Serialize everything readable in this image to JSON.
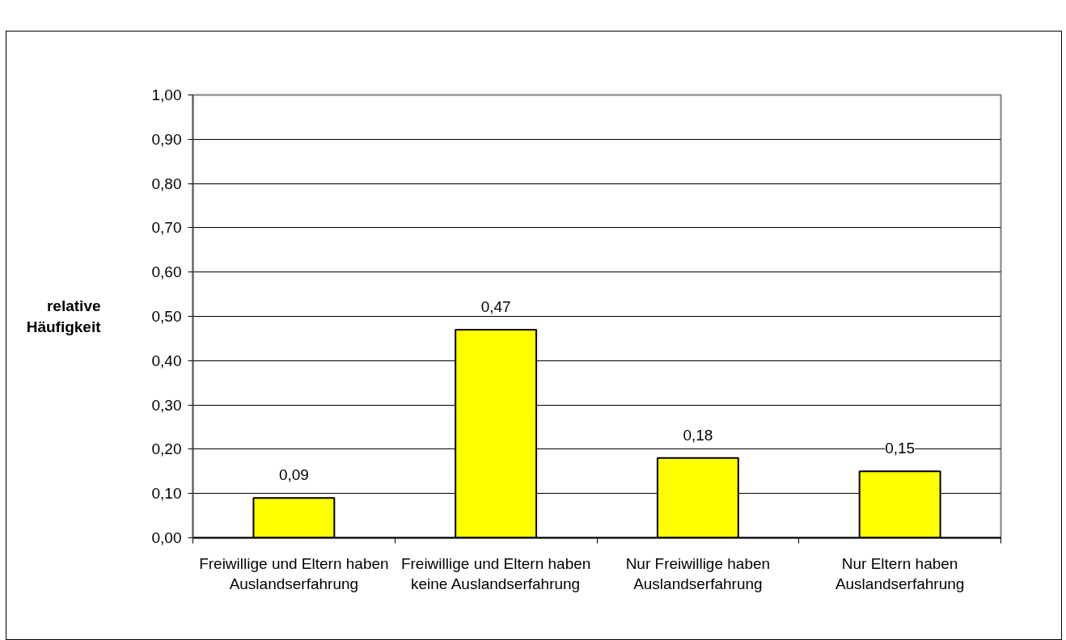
{
  "chart_data": {
    "type": "bar",
    "ylabel": "relative Häufigkeit",
    "categories": [
      "Freiwillige und Eltern haben Auslandserfahrung",
      "Freiwillige und Eltern haben keine Auslandserfahrung",
      "Nur Freiwillige haben Auslandserfahrung",
      "Nur Eltern haben Auslandserfahrung"
    ],
    "values": [
      0.09,
      0.47,
      0.18,
      0.15
    ],
    "value_labels": [
      "0,09",
      "0,47",
      "0,18",
      "0,15"
    ],
    "color": "#ffff00",
    "ylim": [
      0,
      1
    ],
    "yticks": [
      {
        "value": 0,
        "label": "0,00"
      },
      {
        "value": 0.1,
        "label": "0,10"
      },
      {
        "value": 0.2,
        "label": "0,20"
      },
      {
        "value": 0.3,
        "label": "0,30"
      },
      {
        "value": 0.4,
        "label": "0,40"
      },
      {
        "value": 0.5,
        "label": "0,50"
      },
      {
        "value": 0.6,
        "label": "0,60"
      },
      {
        "value": 0.7,
        "label": "0,70"
      },
      {
        "value": 0.8,
        "label": "0,80"
      },
      {
        "value": 0.9,
        "label": "0,90"
      },
      {
        "value": 1,
        "label": "1,00"
      }
    ],
    "grid": "y"
  }
}
